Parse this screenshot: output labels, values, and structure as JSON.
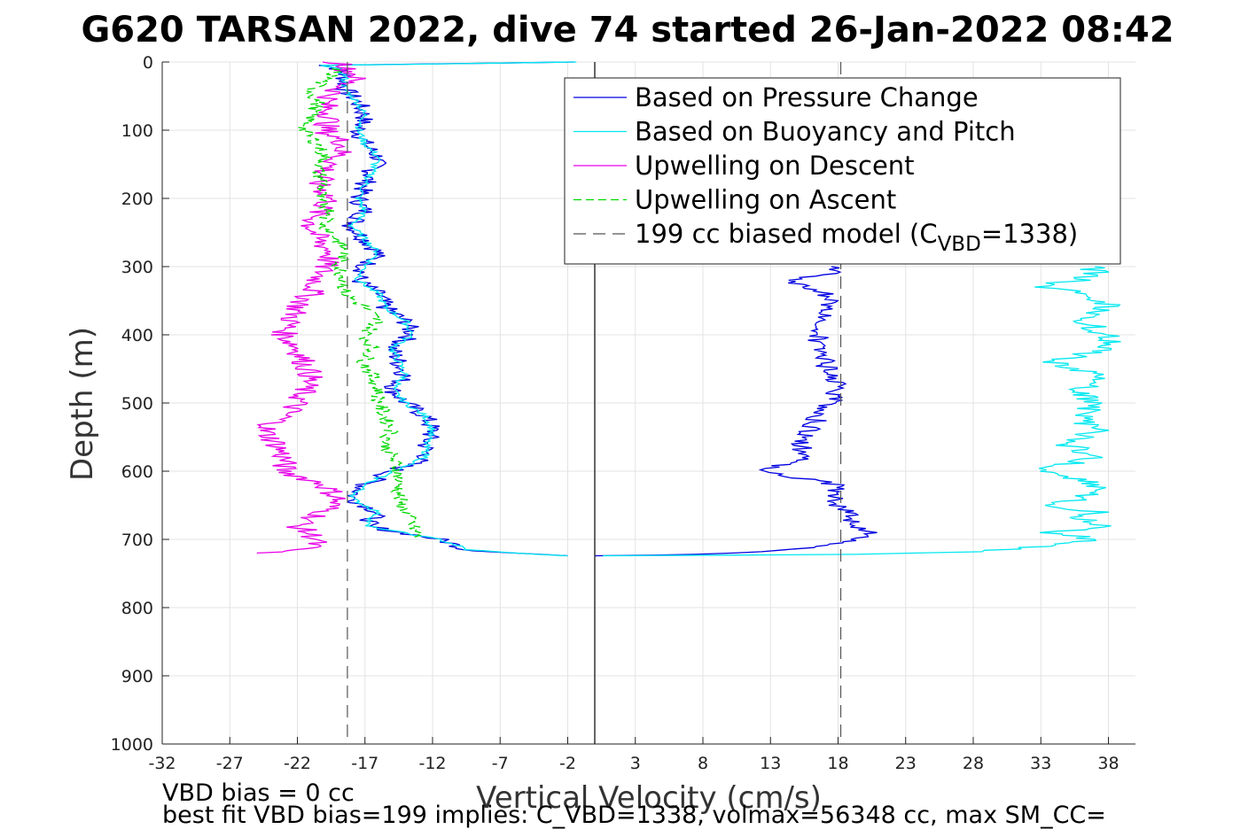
{
  "chart_data": {
    "type": "line",
    "title": "G620 TARSAN 2022, dive 74 started 26-Jan-2022 08:42",
    "xlabel": "Vertical Velocity (cm/s)",
    "ylabel": "Depth (m)",
    "xlim": [
      -32,
      40
    ],
    "ylim": [
      0,
      1000
    ],
    "y_reversed": true,
    "x_ticks": [
      -32,
      -27,
      -22,
      -17,
      -12,
      -7,
      -2,
      3,
      8,
      13,
      18,
      23,
      28,
      33,
      38
    ],
    "y_ticks": [
      0,
      100,
      200,
      300,
      400,
      500,
      600,
      700,
      800,
      900,
      1000
    ],
    "grid": true,
    "legend_position": "top-right",
    "footnotes": [
      "VBD bias = 0 cc",
      "best fit VBD bias=199 implies: C_VBD=1338, volmax=56348 cc, max SM_CC="
    ],
    "series": [
      {
        "name": "Based on Pressure Change",
        "color": "#0000e0",
        "style": "solid",
        "down_depth": [
          0,
          5,
          10,
          20,
          40,
          60,
          80,
          100,
          120,
          140,
          160,
          180,
          200,
          220,
          240,
          260,
          280,
          300,
          320,
          340,
          360,
          380,
          400,
          420,
          440,
          460,
          480,
          500,
          520,
          540,
          560,
          580,
          600,
          620,
          640,
          660,
          680,
          700,
          710,
          715,
          720,
          724
        ],
        "down_values": [
          -1.5,
          -20,
          -19,
          -18.5,
          -18.5,
          -17.5,
          -17,
          -17.5,
          -17,
          -16,
          -16.5,
          -17,
          -17.5,
          -17,
          -18,
          -17,
          -16,
          -17,
          -17.5,
          -16,
          -15.5,
          -14,
          -13.5,
          -15,
          -14.5,
          -14,
          -15,
          -14,
          -12.5,
          -12,
          -12.5,
          -12.5,
          -15,
          -17,
          -18,
          -16,
          -17,
          -11.5,
          -10,
          -9.5,
          -6,
          -2
        ],
        "up_depth": [
          724,
          722,
          718,
          712,
          705,
          700,
          690,
          680,
          670,
          660,
          650,
          640,
          620,
          600,
          580,
          560,
          540,
          520,
          500,
          480,
          460,
          440,
          420,
          400,
          380,
          360,
          340,
          330,
          320,
          310,
          300
        ],
        "up_values": [
          0,
          8,
          13,
          16.5,
          18.5,
          19,
          20.5,
          19,
          19,
          19,
          18,
          18,
          18,
          12,
          16,
          15,
          16,
          16.5,
          17.5,
          18,
          17.5,
          17,
          16.5,
          16.5,
          17,
          17.5,
          17,
          16,
          14,
          17.5,
          17.5
        ]
      },
      {
        "name": "Based on Buoyancy and Pitch",
        "color": "#00e8f0",
        "style": "solid",
        "down_depth": [
          0,
          5,
          10,
          20,
          40,
          60,
          80,
          100,
          120,
          140,
          160,
          180,
          200,
          220,
          240,
          260,
          280,
          300,
          320,
          340,
          360,
          380,
          400,
          420,
          440,
          460,
          480,
          500,
          520,
          540,
          560,
          580,
          600,
          620,
          640,
          660,
          680,
          700,
          710,
          715,
          720,
          724
        ],
        "down_values": [
          -1.5,
          -20,
          -19,
          -18.5,
          -18.5,
          -17.5,
          -17,
          -17.5,
          -17,
          -16,
          -16.5,
          -17,
          -17.5,
          -17,
          -18,
          -17,
          -16,
          -17,
          -17.5,
          -16,
          -15.5,
          -14,
          -13.5,
          -15,
          -14.5,
          -14,
          -15,
          -14,
          -12.5,
          -12,
          -12.5,
          -12.5,
          -15,
          -17,
          -18,
          -16,
          -17,
          -11.5,
          -10,
          -9.5,
          -6,
          -2
        ],
        "up_depth": [
          724,
          722,
          718,
          712,
          705,
          700,
          690,
          680,
          670,
          660,
          650,
          640,
          620,
          600,
          580,
          560,
          540,
          520,
          500,
          480,
          460,
          440,
          420,
          400,
          380,
          360,
          340,
          330,
          320,
          310,
          300
        ],
        "up_values": [
          0,
          20,
          28,
          32,
          35,
          37,
          34,
          38,
          36,
          37,
          34,
          36,
          37,
          33,
          37,
          35,
          37,
          36,
          37,
          36,
          37,
          34,
          38,
          38,
          36,
          38,
          37,
          32,
          36,
          37,
          37
        ]
      },
      {
        "name": "Upwelling on Descent",
        "color": "#e800e8",
        "style": "solid",
        "depth": [
          0,
          5,
          10,
          20,
          40,
          60,
          80,
          100,
          120,
          140,
          160,
          180,
          200,
          220,
          240,
          260,
          280,
          300,
          320,
          340,
          360,
          380,
          400,
          420,
          440,
          460,
          480,
          500,
          520,
          540,
          560,
          580,
          600,
          620,
          640,
          660,
          680,
          700,
          710,
          715,
          720
        ],
        "values": [
          -19.5,
          -18,
          -18.5,
          -17.5,
          -19,
          -20,
          -19.5,
          -20,
          -18.5,
          -19,
          -20,
          -20.5,
          -19.5,
          -20.5,
          -21,
          -20.5,
          -19.5,
          -20,
          -20.5,
          -21,
          -22,
          -22.5,
          -23,
          -22,
          -21.5,
          -21,
          -21.5,
          -22,
          -23,
          -24.5,
          -23.5,
          -23,
          -23,
          -20,
          -19,
          -20,
          -22,
          -20.5,
          -21,
          -22,
          -25
        ]
      },
      {
        "name": "Upwelling on Ascent",
        "color": "#00d800",
        "style": "dashed",
        "depth": [
          10,
          20,
          40,
          60,
          80,
          100,
          120,
          140,
          160,
          180,
          200,
          220,
          240,
          260,
          280,
          300,
          320,
          340,
          360,
          380,
          400,
          420,
          440,
          460,
          480,
          500,
          520,
          540,
          560,
          580,
          600,
          620,
          640,
          660,
          680,
          700
        ],
        "values": [
          -19,
          -19.5,
          -21,
          -20.5,
          -21,
          -21.5,
          -20.5,
          -20,
          -20.5,
          -20,
          -20.5,
          -19.5,
          -20,
          -19,
          -18.5,
          -19,
          -18.5,
          -18.5,
          -17,
          -16,
          -17,
          -16.5,
          -17,
          -16.5,
          -16,
          -16,
          -15.5,
          -15,
          -15.5,
          -15,
          -14.5,
          -14.5,
          -14.5,
          -14,
          -13.5,
          -13
        ]
      },
      {
        "name": "199 cc biased model (C",
        "name_subscript": "VBD",
        "name_suffix": "=1338)",
        "color": "#555555",
        "style": "dashdot",
        "down_value": -18.3,
        "up_value": 18.2
      }
    ]
  }
}
